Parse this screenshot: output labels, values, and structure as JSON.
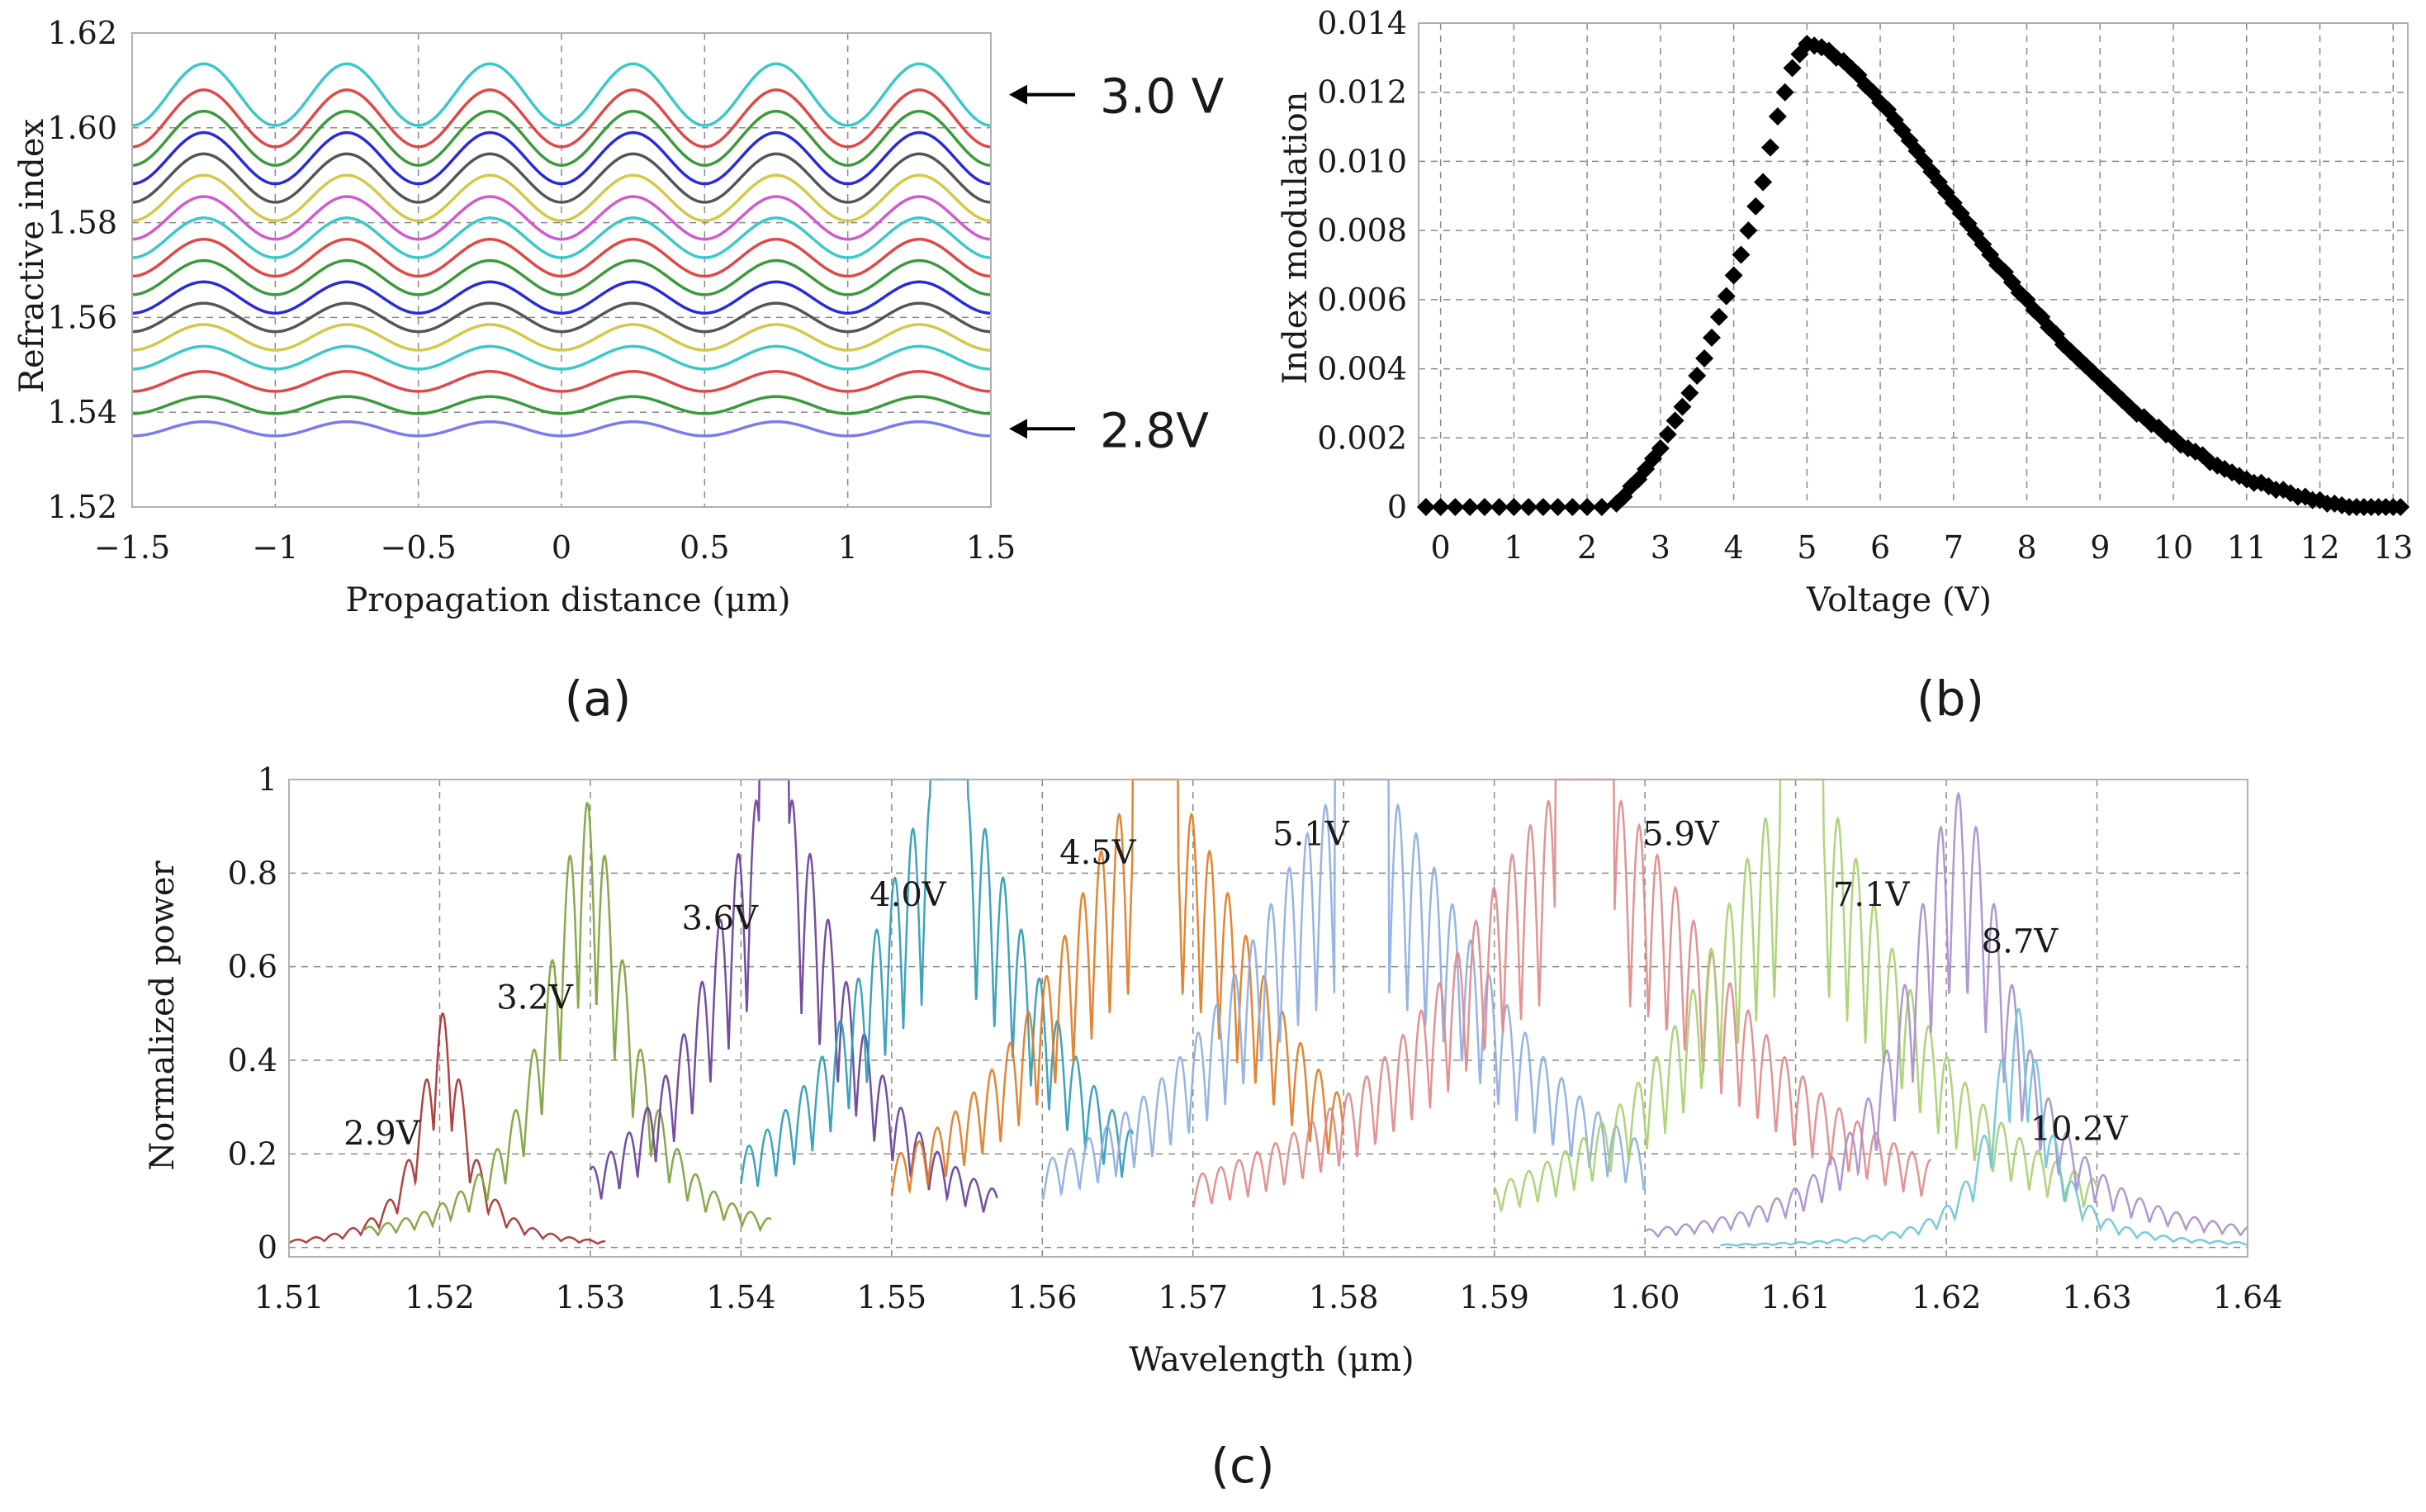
{
  "chart_data": [
    {
      "id": "a",
      "type": "line",
      "panel_label": "(a)",
      "xlabel": "Propagation distance (μm)",
      "ylabel": "Refractive index",
      "xlim": [
        -1.5,
        1.5
      ],
      "ylim": [
        1.52,
        1.62
      ],
      "xticks": [
        -1.5,
        -1,
        -0.5,
        0,
        0.5,
        1,
        1.5
      ],
      "xtick_labels": [
        "−1.5",
        "−1",
        "−0.5",
        "0",
        "0.5",
        "1",
        "1.5"
      ],
      "yticks": [
        1.52,
        1.54,
        1.56,
        1.58,
        1.6,
        1.62
      ],
      "ytick_labels": [
        "1.52",
        "1.54",
        "1.56",
        "1.58",
        "1.60",
        "1.62"
      ],
      "grid": true,
      "period_um": 0.5,
      "annotations": [
        {
          "text": "3.0 V",
          "series_index": 16
        },
        {
          "text": "2.8V",
          "series_index": 0
        }
      ],
      "series": [
        {
          "name": "2.8 V",
          "color": "#7b7bf0",
          "mean": 1.5365,
          "amplitude": 0.0015
        },
        {
          "name": "",
          "color": "#3c9a3c",
          "mean": 1.5415,
          "amplitude": 0.0018
        },
        {
          "name": "",
          "color": "#e04848",
          "mean": 1.5465,
          "amplitude": 0.0021
        },
        {
          "name": "",
          "color": "#3cc8c8",
          "mean": 1.5515,
          "amplitude": 0.0024
        },
        {
          "name": "",
          "color": "#d4c84a",
          "mean": 1.5558,
          "amplitude": 0.0027
        },
        {
          "name": "",
          "color": "#555555",
          "mean": 1.56,
          "amplitude": 0.003
        },
        {
          "name": "",
          "color": "#2a2ad8",
          "mean": 1.5642,
          "amplitude": 0.0033
        },
        {
          "name": "",
          "color": "#3c9a3c",
          "mean": 1.5684,
          "amplitude": 0.0036
        },
        {
          "name": "",
          "color": "#e04848",
          "mean": 1.5726,
          "amplitude": 0.0039
        },
        {
          "name": "",
          "color": "#3cc8c8",
          "mean": 1.5768,
          "amplitude": 0.0042
        },
        {
          "name": "",
          "color": "#d05ad0",
          "mean": 1.581,
          "amplitude": 0.0045
        },
        {
          "name": "",
          "color": "#d4c84a",
          "mean": 1.5852,
          "amplitude": 0.0048
        },
        {
          "name": "",
          "color": "#555555",
          "mean": 1.5894,
          "amplitude": 0.0051
        },
        {
          "name": "",
          "color": "#2a2ad8",
          "mean": 1.5936,
          "amplitude": 0.0054
        },
        {
          "name": "",
          "color": "#3c9a3c",
          "mean": 1.5978,
          "amplitude": 0.0057
        },
        {
          "name": "",
          "color": "#e04848",
          "mean": 1.602,
          "amplitude": 0.006
        },
        {
          "name": "3.0 V",
          "color": "#3cc8c8",
          "mean": 1.607,
          "amplitude": 0.0065
        }
      ]
    },
    {
      "id": "b",
      "type": "scatter",
      "panel_label": "(b)",
      "xlabel": "Voltage (V)",
      "ylabel": "Index modulation",
      "xlim": [
        -0.3,
        13.2
      ],
      "ylim": [
        0,
        0.014
      ],
      "xticks": [
        0,
        1,
        2,
        3,
        4,
        5,
        6,
        7,
        8,
        9,
        10,
        11,
        12,
        13
      ],
      "xtick_labels": [
        "0",
        "1",
        "2",
        "3",
        "4",
        "5",
        "6",
        "7",
        "8",
        "9",
        "10",
        "11",
        "12",
        "13"
      ],
      "yticks": [
        0,
        0.002,
        0.004,
        0.006,
        0.008,
        0.01,
        0.012,
        0.014
      ],
      "ytick_labels": [
        "0",
        "0.002",
        "0.004",
        "0.006",
        "0.008",
        "0.010",
        "0.012",
        "0.014"
      ],
      "grid": true,
      "marker": "diamond",
      "color": "#000000",
      "points": [
        [
          -0.2,
          0
        ],
        [
          0.0,
          0
        ],
        [
          0.2,
          0
        ],
        [
          0.4,
          0
        ],
        [
          0.6,
          0
        ],
        [
          0.8,
          0
        ],
        [
          1.0,
          0
        ],
        [
          1.2,
          0
        ],
        [
          1.4,
          0
        ],
        [
          1.6,
          0
        ],
        [
          1.8,
          0
        ],
        [
          2.0,
          0
        ],
        [
          2.2,
          0
        ],
        [
          2.4,
          0.0001
        ],
        [
          2.5,
          0.0003
        ],
        [
          2.6,
          0.0006
        ],
        [
          2.7,
          0.0008
        ],
        [
          2.8,
          0.0011
        ],
        [
          2.9,
          0.0014
        ],
        [
          3.0,
          0.0017
        ],
        [
          3.1,
          0.0021
        ],
        [
          3.2,
          0.0025
        ],
        [
          3.3,
          0.0029
        ],
        [
          3.4,
          0.0033
        ],
        [
          3.5,
          0.0038
        ],
        [
          3.6,
          0.0043
        ],
        [
          3.7,
          0.0049
        ],
        [
          3.8,
          0.0055
        ],
        [
          3.9,
          0.0061
        ],
        [
          4.0,
          0.0067
        ],
        [
          4.1,
          0.0073
        ],
        [
          4.2,
          0.008
        ],
        [
          4.3,
          0.0087
        ],
        [
          4.4,
          0.0094
        ],
        [
          4.5,
          0.0104
        ],
        [
          4.6,
          0.0113
        ],
        [
          4.7,
          0.012
        ],
        [
          4.8,
          0.0127
        ],
        [
          4.9,
          0.0131
        ],
        [
          5.0,
          0.0134
        ],
        [
          5.1,
          0.01335
        ],
        [
          5.2,
          0.0133
        ],
        [
          5.3,
          0.0132
        ],
        [
          5.4,
          0.013
        ],
        [
          5.5,
          0.0129
        ],
        [
          5.6,
          0.0127
        ],
        [
          5.7,
          0.0125
        ],
        [
          5.8,
          0.0122
        ],
        [
          5.9,
          0.012
        ],
        [
          6.0,
          0.0117
        ],
        [
          6.1,
          0.0115
        ],
        [
          6.2,
          0.0112
        ],
        [
          6.3,
          0.0109
        ],
        [
          6.4,
          0.0106
        ],
        [
          6.5,
          0.0103
        ],
        [
          6.6,
          0.01
        ],
        [
          6.7,
          0.0097
        ],
        [
          6.8,
          0.0094
        ],
        [
          6.9,
          0.0091
        ],
        [
          7.0,
          0.0088
        ],
        [
          7.1,
          0.0085
        ],
        [
          7.2,
          0.0082
        ],
        [
          7.3,
          0.0079
        ],
        [
          7.4,
          0.0076
        ],
        [
          7.5,
          0.0073
        ],
        [
          7.6,
          0.007
        ],
        [
          7.7,
          0.0068
        ],
        [
          7.8,
          0.0065
        ],
        [
          7.9,
          0.0062
        ],
        [
          8.0,
          0.006
        ],
        [
          8.1,
          0.0057
        ],
        [
          8.2,
          0.0055
        ],
        [
          8.3,
          0.0052
        ],
        [
          8.4,
          0.005
        ],
        [
          8.5,
          0.0047
        ],
        [
          8.6,
          0.0045
        ],
        [
          8.7,
          0.0043
        ],
        [
          8.8,
          0.0041
        ],
        [
          8.9,
          0.0039
        ],
        [
          9.0,
          0.0037
        ],
        [
          9.1,
          0.0035
        ],
        [
          9.2,
          0.0033
        ],
        [
          9.3,
          0.0031
        ],
        [
          9.4,
          0.0029
        ],
        [
          9.5,
          0.0027
        ],
        [
          9.6,
          0.0026
        ],
        [
          9.7,
          0.0024
        ],
        [
          9.8,
          0.0023
        ],
        [
          9.9,
          0.0021
        ],
        [
          10.0,
          0.002
        ],
        [
          10.1,
          0.0018
        ],
        [
          10.2,
          0.0017
        ],
        [
          10.3,
          0.0016
        ],
        [
          10.4,
          0.0015
        ],
        [
          10.5,
          0.0013
        ],
        [
          10.6,
          0.0012
        ],
        [
          10.7,
          0.0011
        ],
        [
          10.8,
          0.001
        ],
        [
          10.9,
          0.0009
        ],
        [
          11.0,
          0.0008
        ],
        [
          11.1,
          0.0007
        ],
        [
          11.2,
          0.0007
        ],
        [
          11.3,
          0.0006
        ],
        [
          11.4,
          0.0005
        ],
        [
          11.5,
          0.0005
        ],
        [
          11.6,
          0.0004
        ],
        [
          11.7,
          0.0003
        ],
        [
          11.8,
          0.0003
        ],
        [
          11.9,
          0.0002
        ],
        [
          12.0,
          0.0002
        ],
        [
          12.1,
          0.0001
        ],
        [
          12.2,
          0.0001
        ],
        [
          12.3,
          5e-05
        ],
        [
          12.4,
          0
        ],
        [
          12.5,
          0
        ],
        [
          12.6,
          0
        ],
        [
          12.7,
          0
        ],
        [
          12.8,
          0
        ],
        [
          12.9,
          0
        ],
        [
          13.0,
          0
        ],
        [
          13.1,
          0
        ]
      ]
    },
    {
      "id": "c",
      "type": "line",
      "panel_label": "(c)",
      "xlabel": "Wavelength (μm)",
      "ylabel": "Normalized power",
      "xlim": [
        1.51,
        1.64
      ],
      "ylim": [
        -0.02,
        1.0
      ],
      "xticks": [
        1.51,
        1.52,
        1.53,
        1.54,
        1.55,
        1.56,
        1.57,
        1.58,
        1.59,
        1.6,
        1.61,
        1.62,
        1.63,
        1.64
      ],
      "xtick_labels": [
        "1.51",
        "1.52",
        "1.53",
        "1.54",
        "1.55",
        "1.56",
        "1.57",
        "1.58",
        "1.59",
        "1.60",
        "1.61",
        "1.62",
        "1.63",
        "1.64"
      ],
      "yticks": [
        0,
        0.2,
        0.4,
        0.6,
        0.8,
        1
      ],
      "ytick_labels": [
        "0",
        "0.2",
        "0.4",
        "0.6",
        "0.8",
        "1"
      ],
      "grid": true,
      "series": [
        {
          "name": "2.9V",
          "color": "#a83232",
          "center": 1.5202,
          "peak": 0.5,
          "width": 0.0018,
          "span": [
            1.51,
            1.531
          ]
        },
        {
          "name": "3.2V",
          "color": "#7ea23c",
          "center": 1.5298,
          "peak": 0.95,
          "width": 0.0032,
          "span": [
            1.515,
            1.542
          ]
        },
        {
          "name": "3.6V",
          "color": "#6a3f96",
          "center": 1.5422,
          "peak": 1.0,
          "width": 0.0055,
          "span": [
            1.53,
            1.557
          ]
        },
        {
          "name": "4.0V",
          "color": "#2f9bb4",
          "center": 1.5538,
          "peak": 1.0,
          "width": 0.007,
          "span": [
            1.54,
            1.566
          ]
        },
        {
          "name": "4.5V",
          "color": "#e07c24",
          "center": 1.5675,
          "peak": 1.0,
          "width": 0.0085,
          "span": [
            1.55,
            1.58
          ]
        },
        {
          "name": "5.1V",
          "color": "#8eaee0",
          "center": 1.5812,
          "peak": 1.0,
          "width": 0.01,
          "span": [
            1.56,
            1.6
          ]
        },
        {
          "name": "5.9V",
          "color": "#e08a8a",
          "center": 1.596,
          "peak": 1.0,
          "width": 0.011,
          "span": [
            1.57,
            1.619
          ]
        },
        {
          "name": "7.1V",
          "color": "#a8d070",
          "center": 1.6104,
          "peak": 1.0,
          "width": 0.008,
          "span": [
            1.59,
            1.63
          ]
        },
        {
          "name": "8.7V",
          "color": "#a890cc",
          "center": 1.6208,
          "peak": 0.97,
          "width": 0.0042,
          "span": [
            1.6,
            1.64
          ]
        },
        {
          "name": "10.2V",
          "color": "#6ec4dc",
          "center": 1.6248,
          "peak": 0.51,
          "width": 0.0022,
          "span": [
            1.605,
            1.64
          ]
        }
      ]
    }
  ]
}
